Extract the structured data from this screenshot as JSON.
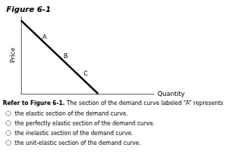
{
  "chart_data": {
    "type": "line",
    "title": "Figure 6-1",
    "xlabel": "Quantity",
    "ylabel": "Price",
    "x": [
      0.0,
      0.58
    ],
    "values": [
      1.0,
      0.0
    ],
    "color": "#000000",
    "xlim": [
      0,
      1.0
    ],
    "ylim": [
      0,
      1.05
    ],
    "xticks": [],
    "yticks": [],
    "tick_labels": false,
    "grid": false,
    "annotations": [
      {
        "x": 0.16,
        "y": 0.73,
        "text": "A"
      },
      {
        "x": 0.32,
        "y": 0.47,
        "text": "B"
      },
      {
        "x": 0.47,
        "y": 0.23,
        "text": "C"
      }
    ],
    "question": [
      "Refer to Figure 6-1.",
      " The section of the demand curve labeled “A” represents"
    ],
    "options": [
      "the elastic section of the demand curve.",
      "the perfectly elastic section of the demand curve.",
      "the inelastic section of the demand curve.",
      "the unit-elastic section of the demand curve."
    ]
  }
}
